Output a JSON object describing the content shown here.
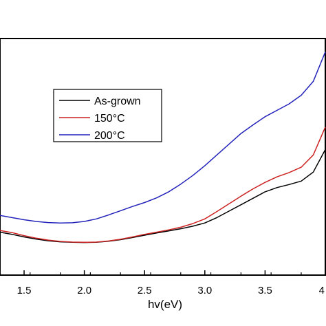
{
  "chart_data": {
    "type": "line",
    "xlabel": "hv(eV)",
    "ylabel": "",
    "xlim": [
      1.3,
      4.0
    ],
    "ylim": [
      0,
      1
    ],
    "x_ticks": [
      1.5,
      2.0,
      2.5,
      3.0,
      3.5,
      4.0
    ],
    "x_tick_labels": [
      "1.5",
      "2.0",
      "2.5",
      "3.0",
      "3.5",
      "4"
    ],
    "grid": false,
    "legend_position": "upper-left",
    "series": [
      {
        "name": "As-grown",
        "color": "#000000",
        "x": [
          1.3,
          1.4,
          1.5,
          1.6,
          1.7,
          1.8,
          1.9,
          2.0,
          2.1,
          2.2,
          2.3,
          2.4,
          2.5,
          2.6,
          2.7,
          2.8,
          2.9,
          3.0,
          3.1,
          3.2,
          3.3,
          3.4,
          3.5,
          3.6,
          3.7,
          3.8,
          3.9,
          4.0
        ],
        "y": [
          0.2,
          0.19,
          0.178,
          0.168,
          0.16,
          0.155,
          0.153,
          0.152,
          0.153,
          0.158,
          0.165,
          0.175,
          0.186,
          0.196,
          0.206,
          0.216,
          0.228,
          0.243,
          0.268,
          0.298,
          0.328,
          0.358,
          0.388,
          0.408,
          0.422,
          0.438,
          0.48,
          0.585
        ]
      },
      {
        "name": "150°C",
        "color": "#cc2222",
        "x": [
          1.3,
          1.4,
          1.5,
          1.6,
          1.7,
          1.8,
          1.9,
          2.0,
          2.1,
          2.2,
          2.3,
          2.4,
          2.5,
          2.6,
          2.7,
          2.8,
          2.9,
          3.0,
          3.1,
          3.2,
          3.3,
          3.4,
          3.5,
          3.6,
          3.7,
          3.8,
          3.9,
          4.0
        ],
        "y": [
          0.208,
          0.198,
          0.184,
          0.172,
          0.163,
          0.157,
          0.154,
          0.153,
          0.154,
          0.159,
          0.167,
          0.178,
          0.19,
          0.2,
          0.211,
          0.223,
          0.24,
          0.262,
          0.296,
          0.332,
          0.368,
          0.402,
          0.432,
          0.458,
          0.478,
          0.503,
          0.56,
          0.69
        ]
      },
      {
        "name": "200°C",
        "color": "#2222bb",
        "x": [
          1.3,
          1.4,
          1.5,
          1.6,
          1.7,
          1.8,
          1.9,
          2.0,
          2.1,
          2.2,
          2.3,
          2.4,
          2.5,
          2.6,
          2.7,
          2.8,
          2.9,
          3.0,
          3.1,
          3.2,
          3.3,
          3.4,
          3.5,
          3.6,
          3.7,
          3.8,
          3.9,
          4.0
        ],
        "y": [
          0.278,
          0.268,
          0.258,
          0.25,
          0.245,
          0.243,
          0.244,
          0.25,
          0.262,
          0.28,
          0.3,
          0.32,
          0.338,
          0.36,
          0.388,
          0.424,
          0.464,
          0.51,
          0.56,
          0.61,
          0.66,
          0.7,
          0.738,
          0.768,
          0.798,
          0.838,
          0.903,
          1.04
        ]
      }
    ]
  }
}
